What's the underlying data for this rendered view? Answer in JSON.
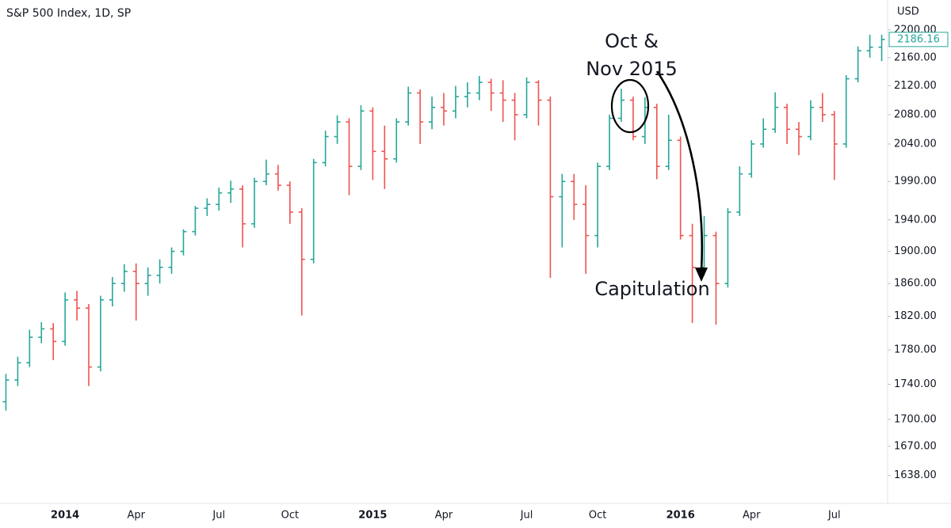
{
  "chart_data": {
    "type": "ohlc",
    "title": "S&P 500 Index, 1D, SP",
    "currency": "USD",
    "annotations": [
      "Oct &",
      "Nov 2015",
      "Capitulation"
    ],
    "log_scale": true,
    "grid": false,
    "up_color": "#26a69a",
    "down_color": "#ef5350",
    "ylim": [
      1608,
      2244
    ],
    "yticks": [
      {
        "value": 1638,
        "label": "1638.00"
      },
      {
        "value": 1670,
        "label": "1670.00"
      },
      {
        "value": 1700,
        "label": "1700.00"
      },
      {
        "value": 1740,
        "label": "1740.00"
      },
      {
        "value": 1780,
        "label": "1780.00"
      },
      {
        "value": 1820,
        "label": "1820.00"
      },
      {
        "value": 1860,
        "label": "1860.00"
      },
      {
        "value": 1900,
        "label": "1900.00"
      },
      {
        "value": 1940,
        "label": "1940.00"
      },
      {
        "value": 1990,
        "label": "1990.00"
      },
      {
        "value": 2040,
        "label": "2040.00"
      },
      {
        "value": 2080,
        "label": "2080.00"
      },
      {
        "value": 2120,
        "label": "2120.00"
      },
      {
        "value": 2160,
        "label": "2160.00"
      },
      {
        "value": 2200,
        "label": "2200.00"
      }
    ],
    "categories": [
      null,
      null,
      null,
      null,
      null,
      "2014",
      null,
      null,
      null,
      null,
      null,
      "Apr",
      null,
      null,
      null,
      null,
      null,
      null,
      "Jul",
      null,
      null,
      null,
      null,
      null,
      "Oct",
      null,
      null,
      null,
      null,
      null,
      null,
      "2015",
      null,
      null,
      null,
      null,
      null,
      "Apr",
      null,
      null,
      null,
      null,
      null,
      null,
      "Jul",
      null,
      null,
      null,
      null,
      null,
      "Oct",
      null,
      null,
      null,
      null,
      null,
      null,
      "2016",
      null,
      null,
      null,
      null,
      null,
      "Apr",
      null,
      null,
      null,
      null,
      null,
      null,
      "Jul",
      null,
      null,
      null,
      null
    ],
    "open": [
      1720,
      1745,
      1765,
      1795,
      1805,
      1790,
      1840,
      1830,
      1760,
      1840,
      1860,
      1875,
      1860,
      1870,
      1880,
      1900,
      1925,
      1955,
      1960,
      1975,
      1980,
      1935,
      1990,
      2000,
      1985,
      1950,
      1890,
      2015,
      2050,
      2070,
      2010,
      2085,
      2030,
      2020,
      2070,
      2110,
      2070,
      2090,
      2085,
      2105,
      2110,
      2125,
      2110,
      2100,
      2080,
      2125,
      2100,
      1970,
      1990,
      1960,
      1920,
      2010,
      2075,
      2100,
      2050,
      2090,
      2010,
      2045,
      1920,
      1880,
      1920,
      1860,
      1950,
      2000,
      2040,
      2060,
      2090,
      2060,
      2050,
      2090,
      2080,
      2040,
      2130,
      2170,
      2175
    ],
    "high": [
      1752,
      1772,
      1804,
      1813,
      1812,
      1849,
      1851,
      1835,
      1845,
      1868,
      1884,
      1885,
      1880,
      1890,
      1905,
      1928,
      1958,
      1968,
      1982,
      1991,
      1985,
      1995,
      2019,
      2012,
      1990,
      1955,
      2020,
      2058,
      2079,
      2075,
      2093,
      2090,
      2065,
      2075,
      2119,
      2115,
      2105,
      2110,
      2120,
      2125,
      2134,
      2130,
      2128,
      2110,
      2132,
      2128,
      2105,
      2000,
      2000,
      1985,
      2015,
      2080,
      2116,
      2105,
      2104,
      2095,
      2080,
      2050,
      1935,
      1945,
      1925,
      1955,
      2010,
      2045,
      2075,
      2111,
      2095,
      2070,
      2100,
      2110,
      2085,
      2135,
      2176,
      2193,
      2193
    ],
    "low": [
      1710,
      1738,
      1760,
      1788,
      1768,
      1785,
      1815,
      1738,
      1755,
      1832,
      1850,
      1815,
      1845,
      1860,
      1872,
      1895,
      1920,
      1945,
      1952,
      1962,
      1905,
      1930,
      1985,
      1978,
      1935,
      1821,
      1885,
      2010,
      2040,
      1972,
      2005,
      1992,
      1980,
      2015,
      2065,
      2040,
      2060,
      2065,
      2075,
      2090,
      2100,
      2085,
      2070,
      2045,
      2075,
      2065,
      1867,
      1905,
      1940,
      1872,
      1905,
      2005,
      2070,
      2045,
      2040,
      1993,
      2005,
      1915,
      1812,
      1870,
      1810,
      1855,
      1945,
      1995,
      2035,
      2055,
      2040,
      2025,
      2045,
      2070,
      1992,
      2035,
      2125,
      2160,
      2155
    ],
    "close": [
      1745,
      1765,
      1795,
      1805,
      1790,
      1840,
      1830,
      1760,
      1840,
      1860,
      1875,
      1860,
      1870,
      1880,
      1900,
      1925,
      1955,
      1960,
      1975,
      1980,
      1935,
      1990,
      2000,
      1985,
      1950,
      1890,
      2015,
      2050,
      2070,
      2010,
      2085,
      2030,
      2020,
      2070,
      2110,
      2070,
      2090,
      2085,
      2105,
      2110,
      2125,
      2110,
      2100,
      2080,
      2125,
      2100,
      1970,
      1990,
      1960,
      1920,
      2010,
      2075,
      2100,
      2050,
      2090,
      2010,
      2045,
      1920,
      1880,
      1920,
      1860,
      1950,
      2000,
      2040,
      2060,
      2090,
      2060,
      2050,
      2090,
      2080,
      2040,
      2130,
      2170,
      2175,
      2186.16
    ]
  }
}
